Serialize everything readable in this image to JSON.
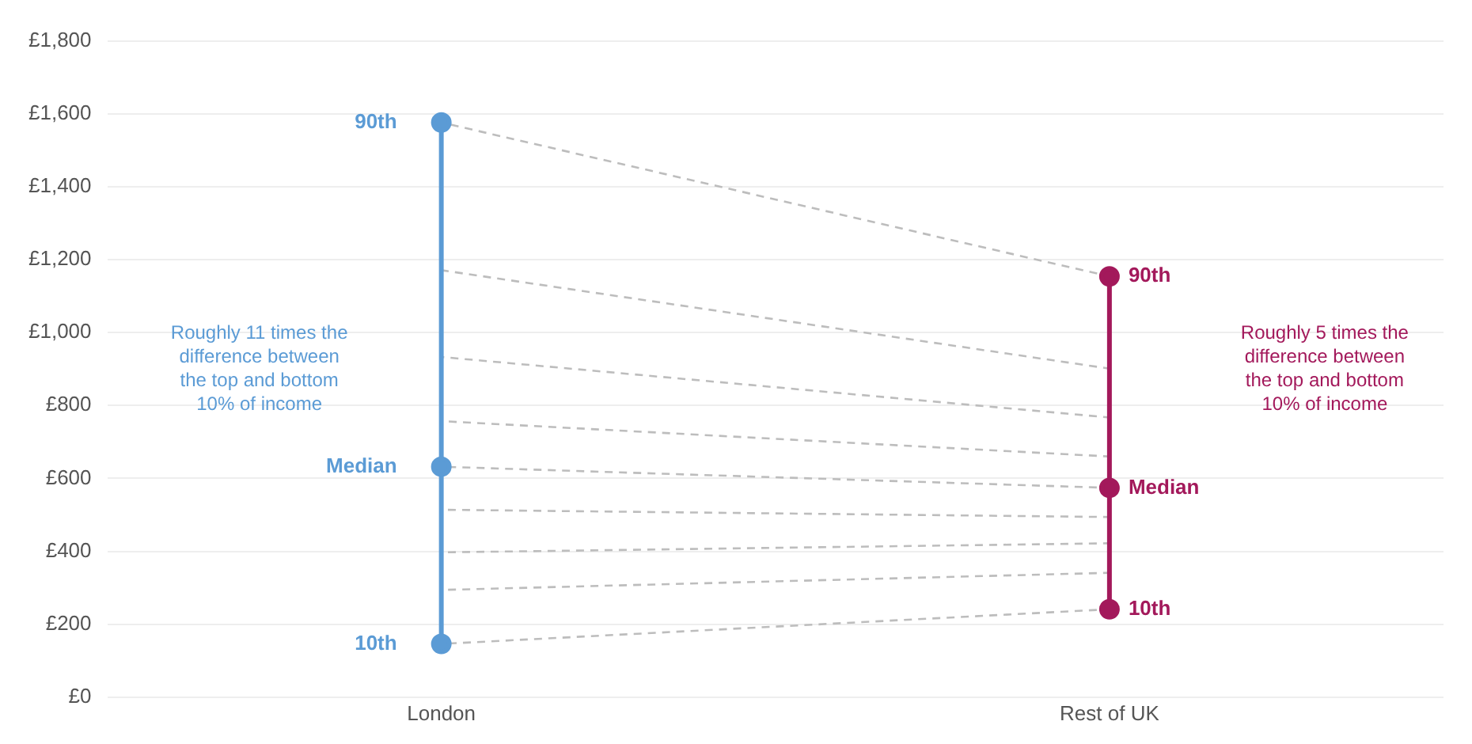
{
  "chart_data": {
    "type": "line",
    "categories": [
      "London",
      "Rest of UK"
    ],
    "series": [
      {
        "color": "#bdbdbd",
        "values": [
          146,
          241
        ],
        "line_style": "dashed",
        "marker": "none"
      },
      {
        "color": "#bdbdbd",
        "values": [
          294,
          341
        ],
        "line_style": "dashed",
        "marker": "none"
      },
      {
        "color": "#bdbdbd",
        "values": [
          397,
          422
        ],
        "line_style": "dashed",
        "marker": "none"
      },
      {
        "color": "#bdbdbd",
        "values": [
          514,
          494
        ],
        "line_style": "dashed",
        "marker": "none"
      },
      {
        "color": "#bdbdbd",
        "values": [
          632,
          574
        ],
        "line_style": "dashed",
        "marker": "none"
      },
      {
        "color": "#bdbdbd",
        "values": [
          757,
          660
        ],
        "line_style": "dashed",
        "marker": "none"
      },
      {
        "color": "#bdbdbd",
        "values": [
          933,
          767
        ],
        "line_style": "dashed",
        "marker": "none"
      },
      {
        "color": "#bdbdbd",
        "values": [
          1171,
          901
        ],
        "line_style": "dashed",
        "marker": "none"
      },
      {
        "color": "#bdbdbd",
        "values": [
          1576,
          1154
        ],
        "line_style": "dashed",
        "marker": "none"
      },
      {
        "color": "#5b9bd5",
        "x": [
          "London",
          "London",
          "London"
        ],
        "values": [
          146,
          632,
          1576
        ],
        "line_style": "solid",
        "marker": "circle"
      },
      {
        "color": "#a3195b",
        "x": [
          "Rest of UK",
          "Rest of UK",
          "Rest of UK"
        ],
        "values": [
          241,
          574,
          1154
        ],
        "line_style": "solid",
        "marker": "circle"
      }
    ],
    "ylim": [
      0,
      1800
    ],
    "yticks": [
      {
        "value": 0,
        "label": "£0"
      },
      {
        "value": 200,
        "label": "£200"
      },
      {
        "value": 400,
        "label": "£400"
      },
      {
        "value": 600,
        "label": "£600"
      },
      {
        "value": 800,
        "label": "£800"
      },
      {
        "value": 1000,
        "label": "£1,000"
      },
      {
        "value": 1200,
        "label": "£1,200"
      },
      {
        "value": 1400,
        "label": "£1,400"
      },
      {
        "value": 1600,
        "label": "£1,600"
      },
      {
        "value": 1800,
        "label": "£1,800"
      }
    ],
    "grid": "y",
    "legend": false,
    "annotations": [
      {
        "text": "90th",
        "x": "London",
        "y": 1576
      },
      {
        "text": "Median",
        "x": "London",
        "y": 632
      },
      {
        "text": "10th",
        "x": "London",
        "y": 146
      },
      {
        "text": "90th",
        "x": "Rest of UK",
        "y": 1154
      },
      {
        "text": "Median",
        "x": "Rest of UK",
        "y": 574
      },
      {
        "text": "10th",
        "x": "Rest of UK",
        "y": 241
      },
      "Roughly 11 times the difference between the top and bottom 10% of income",
      "Roughly 5 times the difference between the top and bottom 10% of income"
    ]
  }
}
